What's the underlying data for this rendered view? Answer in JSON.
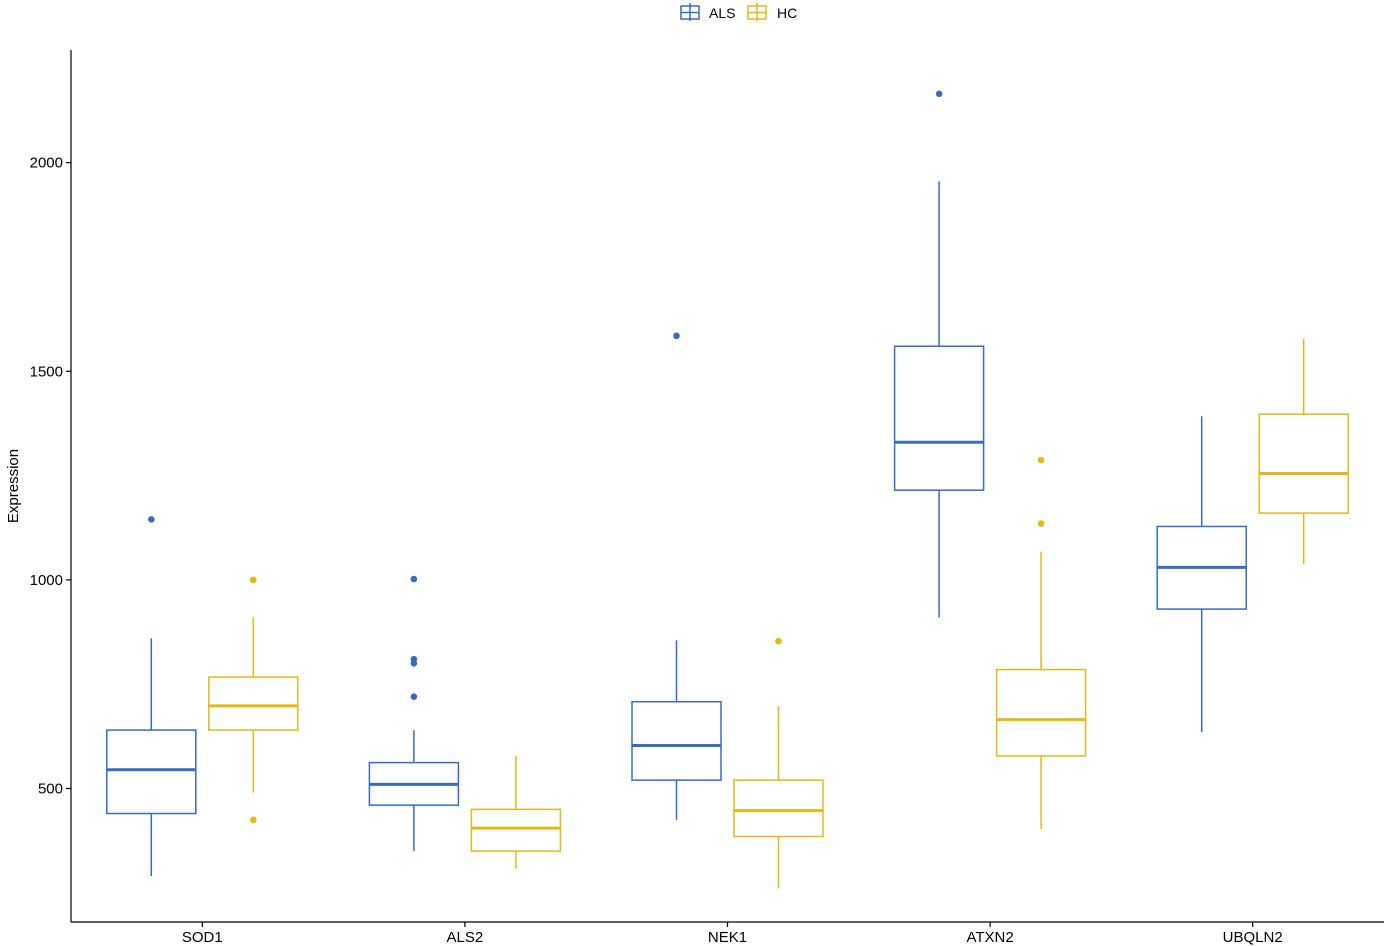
{
  "chart_data": {
    "type": "boxplot",
    "title": "",
    "xlabel": "",
    "ylabel": "Expression",
    "ylim": [
      180,
      2270
    ],
    "yticks": [
      500,
      1000,
      1500,
      2000
    ],
    "categories": [
      "SOD1",
      "ALS2",
      "NEK1",
      "ATXN2",
      "UBQLN2"
    ],
    "legend": {
      "position": "top",
      "entries": [
        "ALS",
        "HC"
      ]
    },
    "grid": false,
    "series": [
      {
        "name": "ALS",
        "color": "#3A6BBF",
        "boxes": [
          {
            "category": "SOD1",
            "min": 290,
            "q1": 440,
            "median": 545,
            "q3": 640,
            "max": 860,
            "outliers": [
              1145
            ]
          },
          {
            "category": "ALS2",
            "min": 350,
            "q1": 460,
            "median": 510,
            "q3": 562,
            "max": 640,
            "outliers": [
              720,
              800,
              810,
              1002
            ]
          },
          {
            "category": "NEK1",
            "min": 425,
            "q1": 520,
            "median": 603,
            "q3": 708,
            "max": 855,
            "outliers": [
              1585
            ]
          },
          {
            "category": "ATXN2",
            "min": 910,
            "q1": 1215,
            "median": 1330,
            "q3": 1560,
            "max": 1955,
            "outliers": [
              2165
            ]
          },
          {
            "category": "UBQLN2",
            "min": 635,
            "q1": 930,
            "median": 1030,
            "q3": 1128,
            "max": 1392,
            "outliers": []
          }
        ]
      },
      {
        "name": "HC",
        "color": "#E3B81B",
        "boxes": [
          {
            "category": "SOD1",
            "min": 490,
            "q1": 640,
            "median": 698,
            "q3": 767,
            "max": 910,
            "outliers": [
              425,
              1000
            ]
          },
          {
            "category": "ALS2",
            "min": 308,
            "q1": 350,
            "median": 405,
            "q3": 450,
            "max": 578,
            "outliers": []
          },
          {
            "category": "NEK1",
            "min": 260,
            "q1": 385,
            "median": 447,
            "q3": 520,
            "max": 698,
            "outliers": [
              853
            ]
          },
          {
            "category": "ATXN2",
            "min": 403,
            "q1": 578,
            "median": 665,
            "q3": 785,
            "max": 1068,
            "outliers": [
              1135,
              1287
            ]
          },
          {
            "category": "UBQLN2",
            "min": 1038,
            "q1": 1160,
            "median": 1255,
            "q3": 1397,
            "max": 1578,
            "outliers": []
          }
        ]
      }
    ]
  }
}
